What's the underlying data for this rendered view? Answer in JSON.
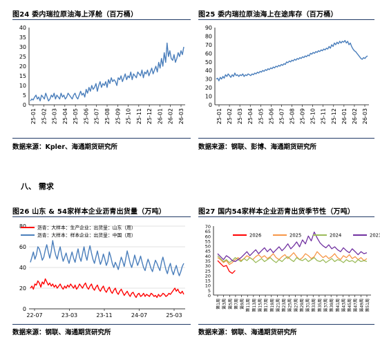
{
  "section": {
    "label": "八、  需求"
  },
  "source_label": "数据来源：",
  "panels": {
    "p24": {
      "title": "图24  委内瑞拉原油海上浮舱（百万桶）",
      "source": "数据来源：Kpler、海通期货研究所"
    },
    "p25": {
      "title": "图25  委内瑞拉原油海上在途库存（百万桶）",
      "source": "数据来源：钢联、彭博、海通期货研究所"
    },
    "p26": {
      "title": "图26  山东 & 54家样本企业沥青出货量（万吨）",
      "source": "数据来源：钢联、海通期货研究所"
    },
    "p27": {
      "title": "图27  国内54家样本企业沥青出货季节性（万吨）",
      "source": "数据来源：钢联、海通期货研究所"
    }
  },
  "colors": {
    "blue": "#4a7ebb",
    "red": "#ff0000",
    "orange": "#f79646",
    "green": "#9bbb59",
    "purple": "#7030a0",
    "rule": "#1f3864"
  },
  "chart_data": [
    {
      "id": "chart24",
      "type": "line",
      "ylim": [
        0,
        40
      ],
      "yticks": [
        0,
        5,
        10,
        15,
        20,
        25,
        30,
        35,
        40
      ],
      "xticks": [
        "25-01",
        "25-02",
        "25-03",
        "25-04",
        "25-05",
        "25-06",
        "25-07",
        "25-08",
        "25-09",
        "25-10",
        "25-11",
        "25-12",
        "26-01",
        "26-02",
        "26-03"
      ],
      "grid": false,
      "series": [
        {
          "color": "#4a7ebb",
          "values": [
            2,
            3,
            2.5,
            4,
            5,
            3,
            4,
            2,
            5,
            4,
            3,
            6,
            4,
            2,
            3,
            5,
            4,
            6,
            3,
            5,
            4,
            3,
            6,
            4,
            5,
            3,
            4,
            6,
            5,
            4,
            3,
            5,
            6,
            4,
            3,
            5,
            7,
            5,
            6,
            4,
            8,
            6,
            9,
            7,
            10,
            8,
            9,
            11,
            7,
            10,
            12,
            9,
            11,
            10,
            12,
            9,
            13,
            11,
            14,
            12,
            13,
            12,
            10,
            14,
            13,
            15,
            12,
            14,
            16,
            13,
            15,
            14,
            17,
            13,
            16,
            15,
            14,
            17,
            16,
            15,
            18,
            14,
            17,
            16,
            18,
            15,
            17,
            19,
            16,
            18,
            20,
            17,
            22,
            19,
            24,
            20,
            27,
            22,
            32,
            25,
            28,
            24,
            23,
            26,
            22,
            24,
            27,
            25,
            28,
            26,
            30
          ]
        }
      ]
    },
    {
      "id": "chart25",
      "type": "line",
      "ylim": [
        0,
        90
      ],
      "yticks": [
        0,
        10,
        20,
        30,
        40,
        50,
        60,
        70,
        80,
        90
      ],
      "xticks": [
        "25-01",
        "25-02",
        "25-03",
        "25-04",
        "25-05",
        "25-06",
        "25-07",
        "25-08",
        "25-09",
        "25-10",
        "25-11",
        "25-12",
        "26-01",
        "26-02",
        "26-03"
      ],
      "grid": false,
      "series": [
        {
          "color": "#4a7ebb",
          "values": [
            30,
            31,
            28,
            32,
            30,
            33,
            31,
            35,
            33,
            36,
            34,
            32,
            35,
            33,
            37,
            34,
            35,
            33,
            35,
            34,
            36,
            33,
            35,
            34,
            36,
            35,
            34,
            36,
            35,
            37,
            36,
            38,
            37,
            39,
            38,
            40,
            39,
            41,
            40,
            42,
            41,
            43,
            42,
            44,
            43,
            45,
            44,
            46,
            45,
            47,
            46,
            48,
            47,
            50,
            49,
            51,
            50,
            52,
            51,
            53,
            52,
            54,
            53,
            55,
            54,
            56,
            55,
            57,
            56,
            58,
            57,
            60,
            59,
            61,
            60,
            62,
            61,
            63,
            62,
            64,
            63,
            65,
            64,
            66,
            65,
            68,
            66,
            70,
            68,
            72,
            70,
            73,
            71,
            74,
            72,
            74,
            73,
            75,
            72,
            74,
            70,
            72,
            68,
            65,
            63,
            62,
            60,
            58,
            56,
            54,
            53,
            55,
            54,
            56,
            57
          ]
        }
      ]
    },
    {
      "id": "chart26",
      "type": "line",
      "ylim": [
        0,
        80
      ],
      "yticks": [
        0,
        20,
        40,
        60,
        80
      ],
      "xticks": [
        "22-07",
        "23-03",
        "23-11",
        "24-07",
        "25-03"
      ],
      "grid": true,
      "legend": [
        {
          "label": "沥青：大样本：生产企业：出货量：山东（周）",
          "color": "#ff0000"
        },
        {
          "label": "沥青：大样本：样本企业：出货量：中国（周）",
          "color": "#4a7ebb"
        }
      ],
      "series": [
        {
          "color": "#ff0000",
          "values": [
            20,
            22,
            19,
            24,
            23,
            27,
            25,
            21,
            26,
            24,
            29,
            26,
            23,
            25,
            22,
            24,
            21,
            23,
            20,
            22,
            24,
            21,
            19,
            22,
            20,
            23,
            21,
            24,
            22,
            20,
            23,
            19,
            21,
            24,
            22,
            20,
            23,
            25,
            21,
            19,
            22,
            24,
            20,
            18,
            21,
            23,
            19,
            17,
            20,
            22,
            18,
            16,
            19,
            21,
            17,
            15,
            18,
            20,
            16,
            14,
            17,
            19,
            16,
            13,
            15,
            17,
            14,
            12,
            15,
            16,
            13,
            11,
            14,
            15,
            12,
            13,
            15,
            12,
            14,
            13,
            12,
            15,
            14,
            12,
            13,
            11,
            14,
            12,
            13,
            15,
            14,
            12,
            13,
            15,
            14,
            16,
            18,
            20,
            17,
            19,
            16,
            15,
            17,
            14
          ]
        },
        {
          "color": "#4a7ebb",
          "values": [
            45,
            50,
            55,
            48,
            52,
            60,
            58,
            53,
            47,
            50,
            57,
            62,
            55,
            49,
            56,
            66,
            58,
            52,
            48,
            55,
            60,
            52,
            46,
            50,
            54,
            48,
            44,
            50,
            55,
            49,
            45,
            52,
            58,
            50,
            46,
            53,
            60,
            52,
            47,
            55,
            61,
            54,
            48,
            44,
            50,
            56,
            49,
            43,
            47,
            53,
            48,
            42,
            46,
            55,
            50,
            44,
            40,
            45,
            42,
            38,
            44,
            50,
            46,
            41,
            48,
            56,
            50,
            44,
            40,
            45,
            52,
            47,
            42,
            46,
            51,
            45,
            40,
            37,
            43,
            48,
            44,
            39,
            36,
            42,
            47,
            44,
            40,
            37,
            45,
            50,
            44,
            38,
            34,
            40,
            44,
            37,
            33,
            38,
            42,
            36,
            32,
            36,
            41,
            44
          ]
        }
      ]
    },
    {
      "id": "chart27",
      "type": "line",
      "ylim": [
        0,
        70
      ],
      "yticks": [
        0,
        5,
        10,
        15,
        20,
        25,
        30,
        35,
        40,
        45,
        50,
        55,
        60,
        65,
        70
      ],
      "xticks": [
        "第1周",
        "第3周",
        "第5周",
        "第7周",
        "第9周",
        "第11周",
        "第13周",
        "第15周",
        "第17周",
        "第19周",
        "第21周",
        "第23周",
        "第25周",
        "第27周",
        "第29周",
        "第31周",
        "第33周",
        "第35周",
        "第37周",
        "第39周",
        "第41周",
        "第43周",
        "第45周",
        "第47周",
        "第49周",
        "第51周"
      ],
      "grid": false,
      "legend": [
        {
          "label": "2026",
          "color": "#ff0000"
        },
        {
          "label": "2025",
          "color": "#f79646"
        },
        {
          "label": "2024",
          "color": "#9bbb59"
        },
        {
          "label": "2023",
          "color": "#7030a0"
        }
      ],
      "series": [
        {
          "name": "2026",
          "color": "#ff0000",
          "values": [
            35,
            32,
            29,
            30,
            24,
            22,
            25
          ]
        },
        {
          "name": "2025",
          "color": "#f79646",
          "values": [
            38,
            36,
            33,
            35,
            31,
            33,
            36,
            38,
            35,
            37,
            40,
            38,
            36,
            39,
            41,
            38,
            40,
            37,
            39,
            42,
            38,
            36,
            39,
            41,
            37,
            40,
            43,
            39,
            36,
            38,
            42,
            40,
            37,
            39,
            44,
            41,
            38,
            40,
            37,
            39,
            42,
            38,
            36,
            40,
            38,
            41,
            37,
            39,
            36,
            38,
            35,
            37
          ]
        },
        {
          "name": "2024",
          "color": "#9bbb59",
          "values": [
            40,
            37,
            34,
            36,
            33,
            35,
            38,
            36,
            34,
            37,
            35,
            38,
            36,
            33,
            35,
            37,
            34,
            36,
            38,
            35,
            33,
            36,
            34,
            37,
            39,
            36,
            34,
            38,
            36,
            35,
            37,
            34,
            36,
            38,
            35,
            34,
            36,
            33,
            35,
            37,
            34,
            36,
            35,
            33,
            36,
            34,
            35,
            33,
            36,
            34,
            35,
            34
          ]
        },
        {
          "name": "2023",
          "color": "#7030a0",
          "values": [
            42,
            39,
            36,
            40,
            38,
            35,
            34,
            36,
            38,
            41,
            44,
            40,
            43,
            46,
            42,
            45,
            48,
            44,
            47,
            43,
            46,
            49,
            45,
            48,
            52,
            47,
            50,
            54,
            49,
            56,
            52,
            60,
            55,
            64,
            58,
            53,
            50,
            48,
            51,
            47,
            49,
            46,
            44,
            48,
            45,
            43,
            47,
            44,
            41,
            44,
            42,
            43
          ]
        }
      ]
    }
  ]
}
